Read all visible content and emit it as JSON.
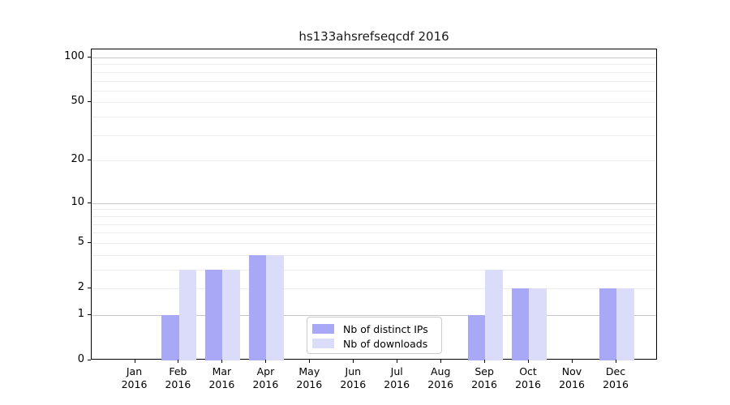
{
  "title": "hs133ahsrefseqcdf 2016",
  "colors": {
    "distinct_ips": "#a8a8f7",
    "downloads": "#dbdbfa",
    "grid_major": "#c6c6c6",
    "grid_minor": "#ededed",
    "spine": "#000000"
  },
  "legend": {
    "items": [
      {
        "label": "Nb of distinct IPs",
        "color_key": "distinct_ips"
      },
      {
        "label": "Nb of downloads",
        "color_key": "downloads"
      }
    ]
  },
  "chart_data": {
    "type": "bar",
    "title": "hs133ahsrefseqcdf 2016",
    "categories": [
      "Jan 2016",
      "Feb 2016",
      "Mar 2016",
      "Apr 2016",
      "May 2016",
      "Jun 2016",
      "Jul 2016",
      "Aug 2016",
      "Sep 2016",
      "Oct 2016",
      "Nov 2016",
      "Dec 2016"
    ],
    "series": [
      {
        "name": "Nb of distinct IPs",
        "values": [
          0,
          1,
          3,
          4,
          0,
          0,
          0,
          0,
          1,
          2,
          0,
          2
        ]
      },
      {
        "name": "Nb of downloads",
        "values": [
          0,
          3,
          3,
          4,
          0,
          0,
          0,
          0,
          3,
          2,
          0,
          2
        ]
      }
    ],
    "xlabel": "",
    "ylabel": "",
    "ylim": [
      0,
      100
    ],
    "yscale": "log1p",
    "yticks": [
      0,
      1,
      2,
      5,
      10,
      20,
      50,
      100
    ],
    "major_gridlines": [
      1,
      10,
      100
    ],
    "minor_gridlines": [
      2,
      3,
      4,
      5,
      6,
      7,
      8,
      9,
      20,
      30,
      40,
      50,
      60,
      70,
      80,
      90
    ],
    "grid": true,
    "legend_position": "lower center"
  }
}
